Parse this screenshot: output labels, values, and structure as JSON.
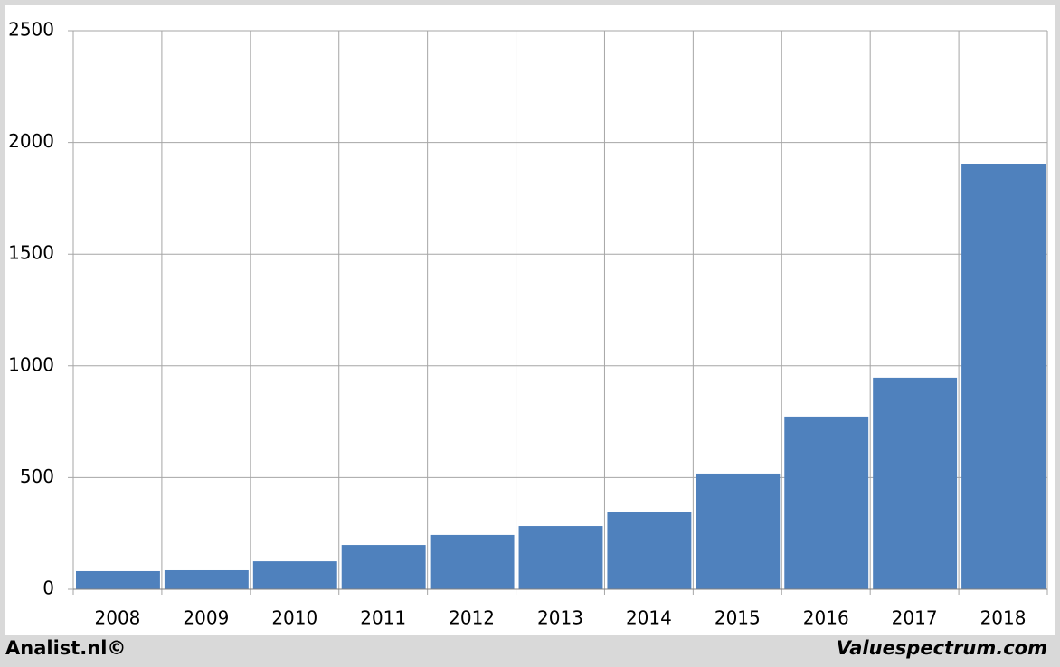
{
  "chart_data": {
    "type": "bar",
    "categories": [
      "2008",
      "2009",
      "2010",
      "2011",
      "2012",
      "2013",
      "2014",
      "2015",
      "2016",
      "2017",
      "2018"
    ],
    "values": [
      81,
      85,
      125,
      198,
      243,
      283,
      344,
      518,
      773,
      947,
      1905
    ],
    "color": "#4f81bd",
    "ylim": [
      0,
      2500
    ],
    "yticks": [
      0,
      500,
      1000,
      1500,
      2000,
      2500
    ],
    "grid": true,
    "annotations": [
      "Analist.nl©",
      "Valuespectrum.com"
    ]
  }
}
